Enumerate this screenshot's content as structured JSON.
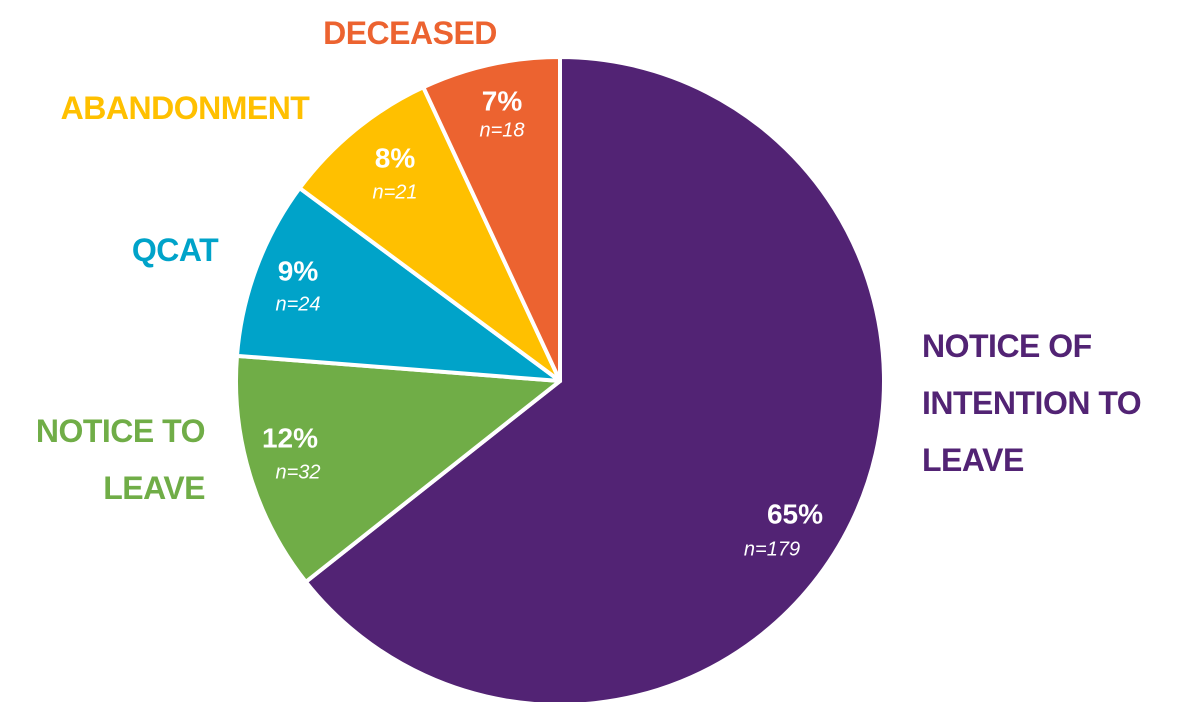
{
  "chart_data": {
    "type": "pie",
    "categories": [
      "NOTICE OF INTENTION TO LEAVE",
      "NOTICE TO LEAVE",
      "QCAT",
      "ABANDONMENT",
      "DECEASED"
    ],
    "values": [
      65,
      12,
      9,
      8,
      7
    ],
    "value_labels": [
      "65%",
      "12%",
      "9%",
      "8%",
      "7%"
    ],
    "n_labels": [
      "n=179",
      "n=32",
      "n=24",
      "n=21",
      "n=18"
    ],
    "colors": [
      "#522374",
      "#70ad47",
      "#00a3c9",
      "#ffc000",
      "#ec6330"
    ]
  }
}
